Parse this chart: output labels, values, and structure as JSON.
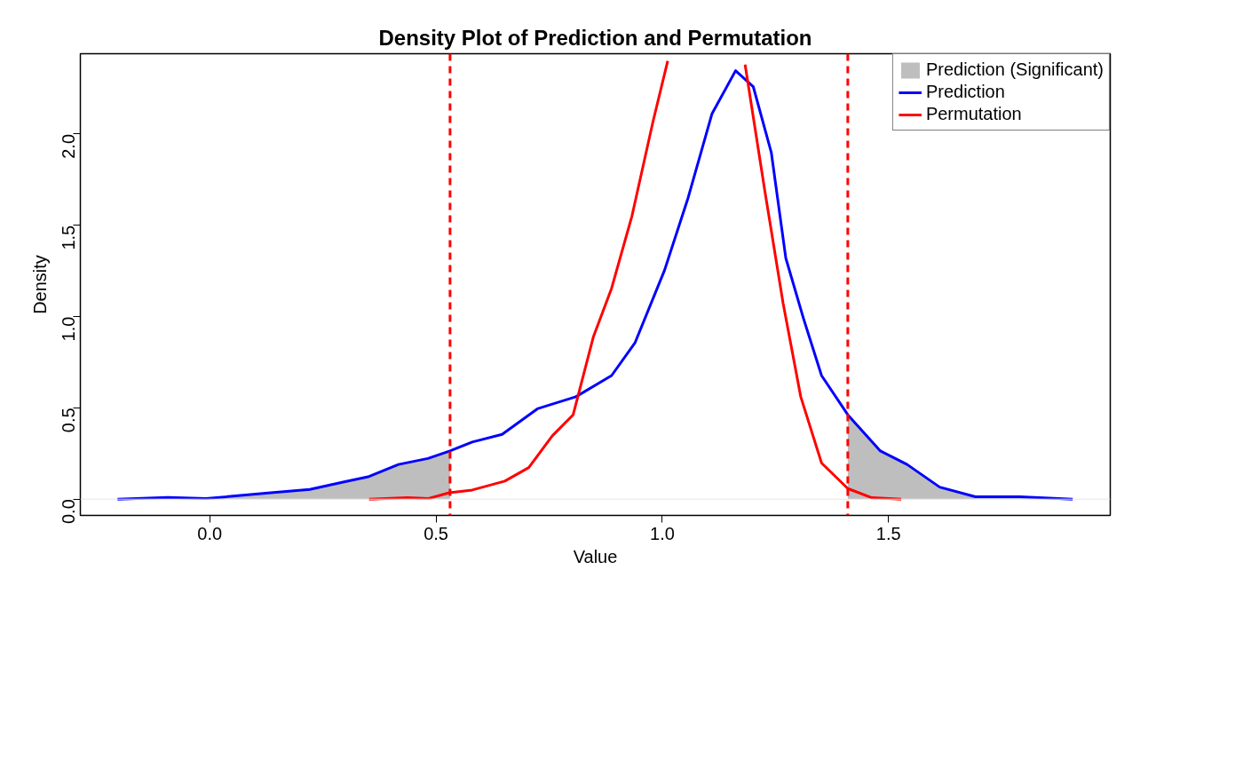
{
  "chart_data": {
    "type": "line",
    "title": "Density Plot of Prediction and Permutation",
    "xlabel": "Value",
    "ylabel": "Density",
    "xlim": [
      -0.286,
      1.99
    ],
    "ylim": [
      -0.089,
      2.44
    ],
    "xticks": [
      {
        "value": 0,
        "label": "0.0"
      },
      {
        "value": 0.5,
        "label": "0.5"
      },
      {
        "value": 1,
        "label": "1.0"
      },
      {
        "value": 1.5,
        "label": "1.5"
      }
    ],
    "yticks": [
      {
        "value": 0,
        "label": "0.0"
      },
      {
        "value": 0.5,
        "label": "0.5"
      },
      {
        "value": 1,
        "label": "1.0"
      },
      {
        "value": 1.5,
        "label": "1.5"
      },
      {
        "value": 2,
        "label": "2.0"
      }
    ],
    "grid": false,
    "legend": "top right",
    "line_style": "solid",
    "series": [
      {
        "name": "Prediction (Significant)",
        "type": "area",
        "color": "#bebebe",
        "x": [
          -0.204,
          -0.093,
          -0.008,
          0.123,
          0.221,
          0.299,
          0.352,
          0.417,
          0.482,
          0.531,
          0.98,
          1.41,
          1.482,
          1.541,
          1.613,
          1.692,
          1.79,
          1.907
        ],
        "values": [
          0,
          0.01,
          0.003,
          0.033,
          0.053,
          0.096,
          0.124,
          0.19,
          0.223,
          0.264,
          null,
          0.462,
          0.264,
          0.19,
          0.066,
          0.013,
          0.013,
          0
        ]
      },
      {
        "name": "Prediction",
        "color": "#0000ff",
        "x": [
          -0.204,
          -0.093,
          -0.008,
          0.123,
          0.221,
          0.299,
          0.352,
          0.417,
          0.482,
          0.531,
          0.58,
          0.646,
          0.724,
          0.809,
          0.888,
          0.94,
          1.005,
          1.057,
          1.11,
          1.162,
          1.201,
          1.241,
          1.273,
          1.312,
          1.352,
          1.41,
          1.482,
          1.541,
          1.613,
          1.692,
          1.79,
          1.907
        ],
        "values": [
          0,
          0.01,
          0.003,
          0.033,
          0.053,
          0.096,
          0.124,
          0.19,
          0.223,
          0.264,
          0.313,
          0.355,
          0.495,
          0.561,
          0.677,
          0.858,
          1.254,
          1.65,
          2.112,
          2.347,
          2.26,
          1.898,
          1.32,
          0.99,
          0.677,
          0.462,
          0.264,
          0.19,
          0.066,
          0.013,
          0.013,
          0
        ]
      },
      {
        "name": "Permutation",
        "color": "#ff0000",
        "x": [
          0.352,
          0.437,
          0.482,
          0.531,
          0.58,
          0.652,
          0.705,
          0.757,
          0.803,
          0.848,
          0.888,
          0.933,
          0.979,
          1.012,
          1.1,
          1.183,
          1.227,
          1.267,
          1.306,
          1.352,
          1.41,
          1.463,
          1.528
        ],
        "values": [
          0,
          0.008,
          0.003,
          0.036,
          0.05,
          0.099,
          0.173,
          0.347,
          0.462,
          0.891,
          1.155,
          1.551,
          2.063,
          2.4,
          null,
          2.38,
          1.683,
          1.073,
          0.561,
          0.198,
          0.058,
          0.008,
          0
        ]
      }
    ],
    "ref_lines": [
      {
        "axis": "y",
        "value": 0,
        "color": "#e6e6e6",
        "line_style": "solid"
      },
      {
        "axis": "x",
        "value": 0.531,
        "color": "#ff0000",
        "line_style": "dashed"
      },
      {
        "axis": "x",
        "value": 1.41,
        "color": "#ff0000",
        "line_style": "dashed"
      }
    ]
  }
}
